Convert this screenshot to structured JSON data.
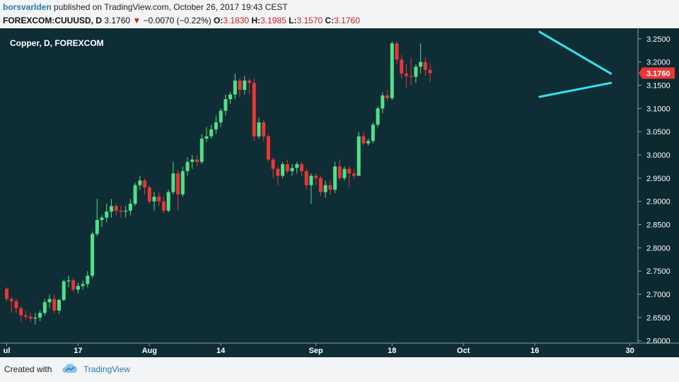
{
  "header": {
    "user": "borsvarlden",
    "published_text": "published on TradingView.com, October 26, 2017 19:43 CEST",
    "symbol": "FOREXCOM:CUUUSD, D",
    "last": "3.1760",
    "change_arrow": "▼",
    "change": "−0.0070 (−0.22%)",
    "o_label": "O:",
    "o_value": "3.1830",
    "h_label": "H:",
    "h_value": "3.1985",
    "l_label": "L:",
    "l_value": "3.1570",
    "c_label": "C:",
    "c_value": "3.1760"
  },
  "footer": {
    "created_with": "Created with",
    "brand": "TradingView"
  },
  "colors": {
    "background": "#0f2d35",
    "up": "#50e089",
    "down": "#ec3535",
    "trendline": "#35e0f0",
    "axis_text": "#ffffff",
    "price_tag": "#ec3535"
  },
  "chart_data": {
    "type": "candlestick",
    "title": "Copper, D, FOREXCOM",
    "current_price_label": "3.1760",
    "ylim": [
      2.595,
      3.2725
    ],
    "y_ticks": [
      "3.2500",
      "3.2000",
      "3.1500",
      "3.1000",
      "3.0500",
      "3.0000",
      "2.9500",
      "2.9000",
      "2.8500",
      "2.8000",
      "2.7500",
      "2.7000",
      "2.6500",
      "2.6000"
    ],
    "x_ticks": [
      {
        "label": "ul",
        "index": 0
      },
      {
        "label": "17",
        "index": 15
      },
      {
        "label": "Aug",
        "index": 30
      },
      {
        "label": "14",
        "index": 45
      },
      {
        "label": "Sep",
        "index": 65
      },
      {
        "label": "18",
        "index": 81
      },
      {
        "label": "Oct",
        "index": 96
      },
      {
        "label": "16",
        "index": 111
      },
      {
        "label": "30",
        "index": 131
      }
    ],
    "candles": [
      {
        "o": 2.712,
        "h": 2.715,
        "l": 2.685,
        "c": 2.69
      },
      {
        "o": 2.69,
        "h": 2.695,
        "l": 2.66,
        "c": 2.685
      },
      {
        "o": 2.685,
        "h": 2.69,
        "l": 2.66,
        "c": 2.67
      },
      {
        "o": 2.67,
        "h": 2.675,
        "l": 2.64,
        "c": 2.655
      },
      {
        "o": 2.655,
        "h": 2.665,
        "l": 2.645,
        "c": 2.652
      },
      {
        "o": 2.652,
        "h": 2.66,
        "l": 2.64,
        "c": 2.648
      },
      {
        "o": 2.648,
        "h": 2.66,
        "l": 2.635,
        "c": 2.65
      },
      {
        "o": 2.65,
        "h": 2.665,
        "l": 2.642,
        "c": 2.66
      },
      {
        "o": 2.66,
        "h": 2.69,
        "l": 2.655,
        "c": 2.683
      },
      {
        "o": 2.683,
        "h": 2.7,
        "l": 2.67,
        "c": 2.69
      },
      {
        "o": 2.69,
        "h": 2.7,
        "l": 2.658,
        "c": 2.665
      },
      {
        "o": 2.665,
        "h": 2.69,
        "l": 2.658,
        "c": 2.688
      },
      {
        "o": 2.688,
        "h": 2.732,
        "l": 2.685,
        "c": 2.728
      },
      {
        "o": 2.728,
        "h": 2.74,
        "l": 2.715,
        "c": 2.73
      },
      {
        "o": 2.73,
        "h": 2.735,
        "l": 2.705,
        "c": 2.71
      },
      {
        "o": 2.71,
        "h": 2.725,
        "l": 2.702,
        "c": 2.718
      },
      {
        "o": 2.718,
        "h": 2.73,
        "l": 2.71,
        "c": 2.722
      },
      {
        "o": 2.722,
        "h": 2.75,
        "l": 2.715,
        "c": 2.74
      },
      {
        "o": 2.74,
        "h": 2.835,
        "l": 2.735,
        "c": 2.83
      },
      {
        "o": 2.83,
        "h": 2.905,
        "l": 2.825,
        "c": 2.86
      },
      {
        "o": 2.86,
        "h": 2.87,
        "l": 2.845,
        "c": 2.865
      },
      {
        "o": 2.865,
        "h": 2.895,
        "l": 2.855,
        "c": 2.878
      },
      {
        "o": 2.878,
        "h": 2.905,
        "l": 2.865,
        "c": 2.89
      },
      {
        "o": 2.89,
        "h": 2.895,
        "l": 2.87,
        "c": 2.88
      },
      {
        "o": 2.88,
        "h": 2.89,
        "l": 2.865,
        "c": 2.878
      },
      {
        "o": 2.878,
        "h": 2.89,
        "l": 2.865,
        "c": 2.88
      },
      {
        "o": 2.88,
        "h": 2.905,
        "l": 2.87,
        "c": 2.895
      },
      {
        "o": 2.895,
        "h": 2.94,
        "l": 2.89,
        "c": 2.935
      },
      {
        "o": 2.935,
        "h": 2.955,
        "l": 2.925,
        "c": 2.945
      },
      {
        "o": 2.945,
        "h": 2.95,
        "l": 2.915,
        "c": 2.93
      },
      {
        "o": 2.93,
        "h": 2.935,
        "l": 2.895,
        "c": 2.9
      },
      {
        "o": 2.9,
        "h": 2.92,
        "l": 2.88,
        "c": 2.91
      },
      {
        "o": 2.91,
        "h": 2.92,
        "l": 2.89,
        "c": 2.9
      },
      {
        "o": 2.9,
        "h": 2.91,
        "l": 2.875,
        "c": 2.88
      },
      {
        "o": 2.88,
        "h": 2.925,
        "l": 2.876,
        "c": 2.92
      },
      {
        "o": 2.92,
        "h": 2.985,
        "l": 2.915,
        "c": 2.96
      },
      {
        "o": 2.96,
        "h": 2.968,
        "l": 2.88,
        "c": 2.915
      },
      {
        "o": 2.915,
        "h": 2.975,
        "l": 2.91,
        "c": 2.965
      },
      {
        "o": 2.965,
        "h": 2.995,
        "l": 2.955,
        "c": 2.985
      },
      {
        "o": 2.985,
        "h": 3.0,
        "l": 2.97,
        "c": 2.99
      },
      {
        "o": 2.99,
        "h": 3.0,
        "l": 2.975,
        "c": 2.985
      },
      {
        "o": 2.985,
        "h": 3.045,
        "l": 2.98,
        "c": 3.035
      },
      {
        "o": 3.035,
        "h": 3.06,
        "l": 3.028,
        "c": 3.04
      },
      {
        "o": 3.04,
        "h": 3.065,
        "l": 3.035,
        "c": 3.055
      },
      {
        "o": 3.055,
        "h": 3.085,
        "l": 3.045,
        "c": 3.07
      },
      {
        "o": 3.07,
        "h": 3.1,
        "l": 3.06,
        "c": 3.095
      },
      {
        "o": 3.095,
        "h": 3.13,
        "l": 3.085,
        "c": 3.12
      },
      {
        "o": 3.12,
        "h": 3.135,
        "l": 3.11,
        "c": 3.13
      },
      {
        "o": 3.13,
        "h": 3.175,
        "l": 3.12,
        "c": 3.16
      },
      {
        "o": 3.16,
        "h": 3.165,
        "l": 3.125,
        "c": 3.14
      },
      {
        "o": 3.14,
        "h": 3.17,
        "l": 3.13,
        "c": 3.16
      },
      {
        "o": 3.16,
        "h": 3.165,
        "l": 3.13,
        "c": 3.155
      },
      {
        "o": 3.155,
        "h": 3.165,
        "l": 3.03,
        "c": 3.04
      },
      {
        "o": 3.04,
        "h": 3.08,
        "l": 3.035,
        "c": 3.07
      },
      {
        "o": 3.07,
        "h": 3.075,
        "l": 3.03,
        "c": 3.04
      },
      {
        "o": 3.04,
        "h": 3.045,
        "l": 2.985,
        "c": 2.99
      },
      {
        "o": 2.99,
        "h": 2.995,
        "l": 2.95,
        "c": 2.97
      },
      {
        "o": 2.97,
        "h": 2.975,
        "l": 2.935,
        "c": 2.955
      },
      {
        "o": 2.955,
        "h": 2.985,
        "l": 2.95,
        "c": 2.98
      },
      {
        "o": 2.98,
        "h": 2.99,
        "l": 2.96,
        "c": 2.965
      },
      {
        "o": 2.965,
        "h": 2.98,
        "l": 2.955,
        "c": 2.972
      },
      {
        "o": 2.972,
        "h": 2.985,
        "l": 2.96,
        "c": 2.98
      },
      {
        "o": 2.98,
        "h": 2.985,
        "l": 2.955,
        "c": 2.965
      },
      {
        "o": 2.965,
        "h": 2.97,
        "l": 2.925,
        "c": 2.935
      },
      {
        "o": 2.935,
        "h": 2.96,
        "l": 2.895,
        "c": 2.955
      },
      {
        "o": 2.955,
        "h": 2.96,
        "l": 2.935,
        "c": 2.95
      },
      {
        "o": 2.95,
        "h": 2.955,
        "l": 2.912,
        "c": 2.92
      },
      {
        "o": 2.92,
        "h": 2.945,
        "l": 2.908,
        "c": 2.935
      },
      {
        "o": 2.935,
        "h": 2.945,
        "l": 2.915,
        "c": 2.925
      },
      {
        "o": 2.925,
        "h": 2.985,
        "l": 2.918,
        "c": 2.975
      },
      {
        "o": 2.975,
        "h": 2.99,
        "l": 2.945,
        "c": 2.95
      },
      {
        "o": 2.95,
        "h": 2.975,
        "l": 2.945,
        "c": 2.97
      },
      {
        "o": 2.97,
        "h": 2.975,
        "l": 2.93,
        "c": 2.96
      },
      {
        "o": 2.96,
        "h": 2.97,
        "l": 2.948,
        "c": 2.955
      },
      {
        "o": 2.955,
        "h": 3.05,
        "l": 2.955,
        "c": 3.04
      },
      {
        "o": 3.04,
        "h": 3.05,
        "l": 3.02,
        "c": 3.025
      },
      {
        "o": 3.025,
        "h": 3.035,
        "l": 3.02,
        "c": 3.03
      },
      {
        "o": 3.03,
        "h": 3.07,
        "l": 3.025,
        "c": 3.065
      },
      {
        "o": 3.065,
        "h": 3.105,
        "l": 3.06,
        "c": 3.1
      },
      {
        "o": 3.1,
        "h": 3.135,
        "l": 3.09,
        "c": 3.128
      },
      {
        "o": 3.128,
        "h": 3.14,
        "l": 3.115,
        "c": 3.122
      },
      {
        "o": 3.122,
        "h": 3.245,
        "l": 3.118,
        "c": 3.24
      },
      {
        "o": 3.24,
        "h": 3.245,
        "l": 3.195,
        "c": 3.205
      },
      {
        "o": 3.205,
        "h": 3.215,
        "l": 3.165,
        "c": 3.175
      },
      {
        "o": 3.175,
        "h": 3.195,
        "l": 3.145,
        "c": 3.17
      },
      {
        "o": 3.17,
        "h": 3.21,
        "l": 3.15,
        "c": 3.168
      },
      {
        "o": 3.168,
        "h": 3.195,
        "l": 3.155,
        "c": 3.19
      },
      {
        "o": 3.19,
        "h": 3.24,
        "l": 3.175,
        "c": 3.2
      },
      {
        "o": 3.2,
        "h": 3.21,
        "l": 3.17,
        "c": 3.183
      },
      {
        "o": 3.183,
        "h": 3.1985,
        "l": 3.157,
        "c": 3.176
      }
    ],
    "trendlines": [
      {
        "from": {
          "index": 112,
          "price": 3.265
        },
        "to": {
          "index": 127,
          "price": 3.175
        }
      },
      {
        "from": {
          "index": 112,
          "price": 3.125
        },
        "to": {
          "index": 127,
          "price": 3.155
        }
      }
    ]
  }
}
